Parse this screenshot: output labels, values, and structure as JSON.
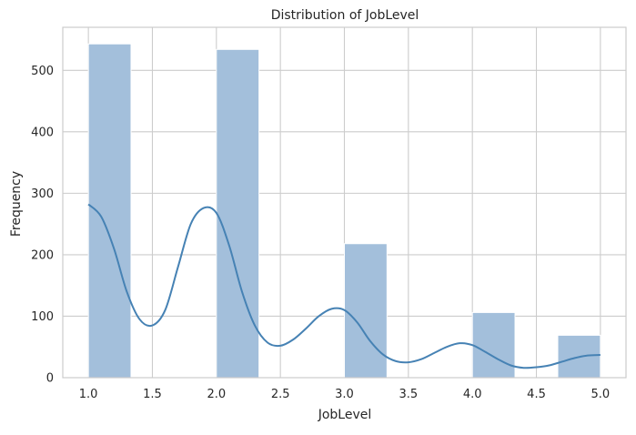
{
  "chart_data": {
    "type": "bar",
    "title": "Distribution of JobLevel",
    "xlabel": "JobLevel",
    "ylabel": "Frequency",
    "xlim": [
      0.8,
      5.2
    ],
    "ylim": [
      0,
      570
    ],
    "xticks": [
      1.0,
      1.5,
      2.0,
      2.5,
      3.0,
      3.5,
      4.0,
      4.5,
      5.0
    ],
    "xtick_labels": [
      "1.0",
      "1.5",
      "2.0",
      "2.5",
      "3.0",
      "3.5",
      "4.0",
      "4.5",
      "5.0"
    ],
    "yticks": [
      0,
      100,
      200,
      300,
      400,
      500
    ],
    "ytick_labels": [
      "0",
      "100",
      "200",
      "300",
      "400",
      "500"
    ],
    "grid": true,
    "bars": [
      {
        "x0": 1.0,
        "x1": 1.333,
        "value": 543
      },
      {
        "x0": 2.0,
        "x1": 2.333,
        "value": 534
      },
      {
        "x0": 3.0,
        "x1": 3.333,
        "value": 218
      },
      {
        "x0": 4.0,
        "x1": 4.333,
        "value": 106
      },
      {
        "x0": 4.667,
        "x1": 5.0,
        "value": 69
      }
    ],
    "kde": {
      "x": [
        1.0,
        1.1,
        1.2,
        1.3,
        1.4,
        1.5,
        1.6,
        1.7,
        1.8,
        1.9,
        2.0,
        2.1,
        2.2,
        2.3,
        2.4,
        2.5,
        2.6,
        2.7,
        2.8,
        2.9,
        3.0,
        3.1,
        3.2,
        3.3,
        3.4,
        3.5,
        3.6,
        3.7,
        3.8,
        3.9,
        4.0,
        4.1,
        4.2,
        4.3,
        4.4,
        4.5,
        4.6,
        4.7,
        4.8,
        4.9,
        5.0
      ],
      "y": [
        282,
        262,
        210,
        140,
        95,
        85,
        110,
        180,
        250,
        276,
        268,
        215,
        140,
        85,
        57,
        52,
        62,
        80,
        100,
        112,
        110,
        90,
        60,
        38,
        27,
        25,
        30,
        40,
        50,
        56,
        53,
        42,
        30,
        20,
        16,
        17,
        20,
        26,
        32,
        36,
        37
      ]
    },
    "colors": {
      "bar_fill": "#a3bfdb",
      "bar_stroke": "#ffffff",
      "kde_line": "#4682b4",
      "grid": "#cccccc",
      "frame": "#cccccc"
    }
  }
}
